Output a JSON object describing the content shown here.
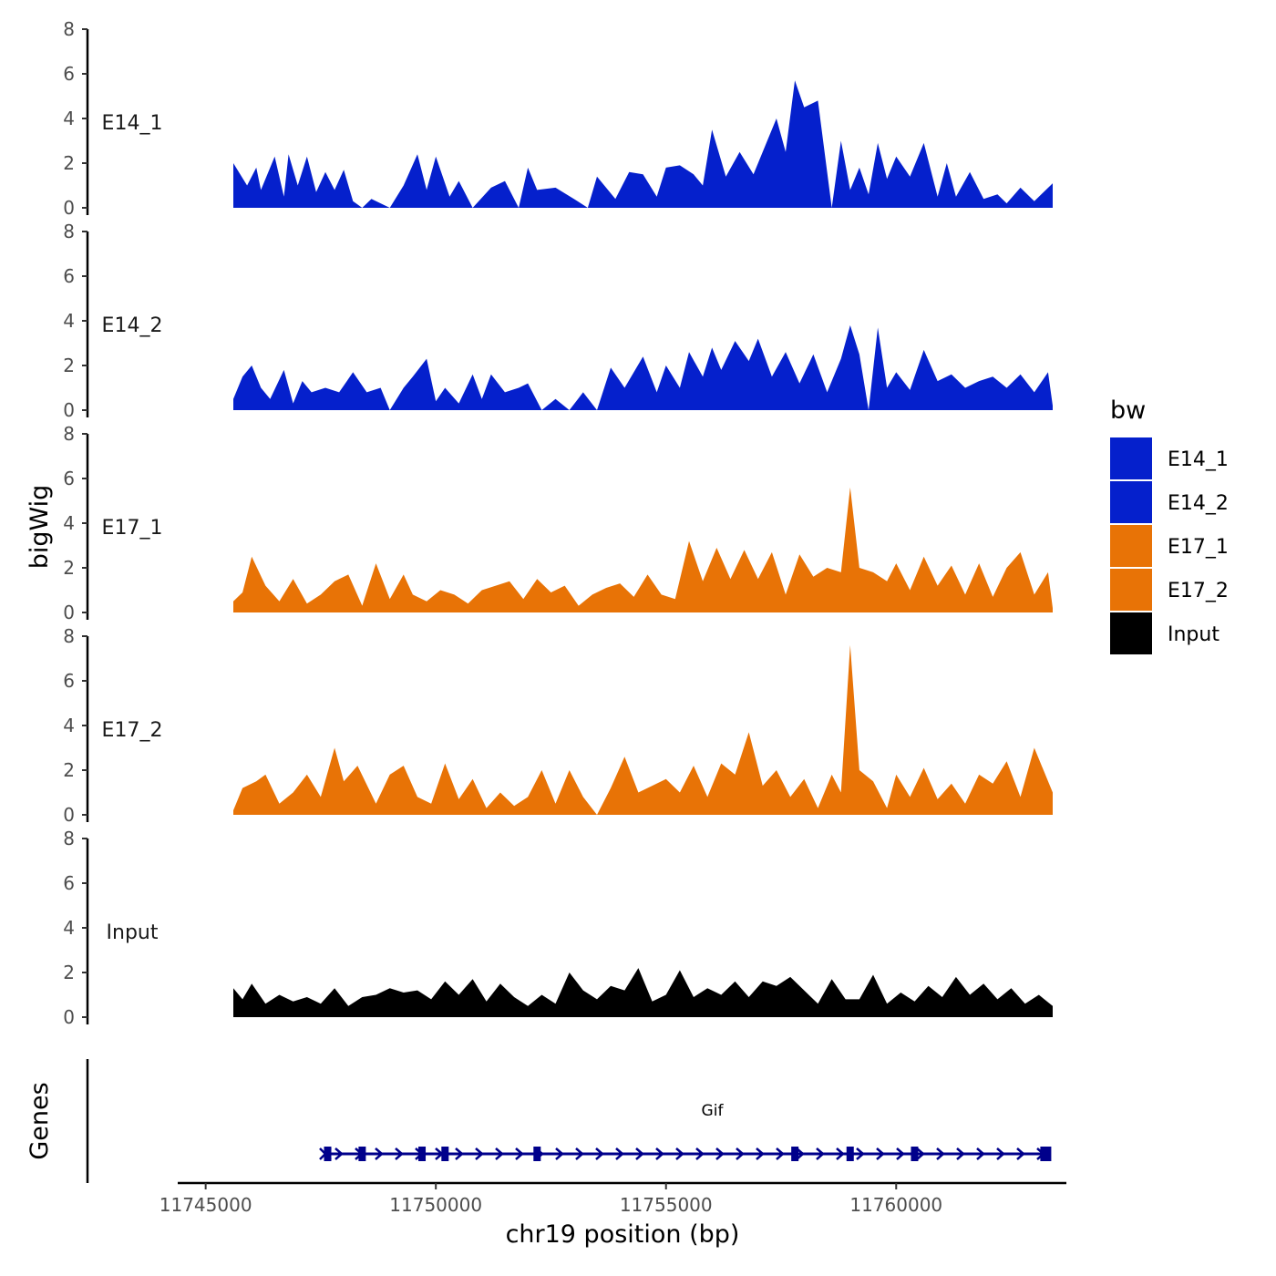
{
  "chart_data": {
    "type": "area",
    "ylabel": "bigWig",
    "xlabel": "chr19 position (bp)",
    "x_range": [
      11745600,
      11763400
    ],
    "xlim": [
      11744700,
      11764400
    ],
    "ylim": [
      0,
      8
    ],
    "y_ticks": [
      "0",
      "2",
      "4",
      "6",
      "8"
    ],
    "x_ticks": [
      {
        "value": 11745000,
        "label": "11745000"
      },
      {
        "value": 11750000,
        "label": "11750000"
      },
      {
        "value": 11755000,
        "label": "11755000"
      },
      {
        "value": 11760000,
        "label": "11760000"
      }
    ],
    "legend": {
      "title": "bw",
      "position": "right",
      "items": [
        {
          "label": "E14_1",
          "color": "#0520CC"
        },
        {
          "label": "E14_2",
          "color": "#0520CC"
        },
        {
          "label": "E17_1",
          "color": "#E87306"
        },
        {
          "label": "E17_2",
          "color": "#E87306"
        },
        {
          "label": "Input",
          "color": "#000000"
        }
      ]
    },
    "series": [
      {
        "name": "E14_1",
        "color": "#0520CC",
        "x": [
          11745600,
          11745900,
          11746100,
          11746200,
          11746500,
          11746700,
          11746800,
          11747000,
          11747200,
          11747400,
          11747600,
          11747800,
          11748000,
          11748200,
          11748400,
          11748600,
          11749000,
          11749300,
          11749600,
          11749800,
          11750000,
          11750300,
          11750500,
          11750800,
          11751200,
          11751500,
          11751800,
          11752000,
          11752200,
          11752600,
          11753000,
          11753300,
          11753500,
          11753900,
          11754200,
          11754500,
          11754800,
          11755000,
          11755300,
          11755600,
          11755800,
          11756000,
          11756300,
          11756600,
          11756900,
          11757200,
          11757400,
          11757600,
          11757800,
          11758000,
          11758300,
          11758600,
          11758800,
          11759000,
          11759200,
          11759400,
          11759600,
          11759800,
          11760000,
          11760300,
          11760600,
          11760900,
          11761100,
          11761300,
          11761600,
          11761900,
          11762200,
          11762400,
          11762700,
          11763000,
          11763400
        ],
        "values": [
          2.0,
          1.0,
          1.8,
          0.8,
          2.3,
          0.5,
          2.4,
          1.0,
          2.3,
          0.7,
          1.6,
          0.8,
          1.7,
          0.3,
          0.0,
          0.4,
          0.0,
          1.0,
          2.4,
          0.8,
          2.3,
          0.5,
          1.2,
          0.0,
          0.9,
          1.2,
          0.0,
          1.8,
          0.8,
          0.9,
          0.4,
          0.0,
          1.4,
          0.4,
          1.6,
          1.5,
          0.5,
          1.8,
          1.9,
          1.5,
          1.0,
          3.5,
          1.4,
          2.5,
          1.5,
          3.0,
          4.0,
          2.5,
          5.7,
          4.5,
          4.8,
          0.0,
          3.0,
          0.8,
          1.8,
          0.6,
          2.9,
          1.3,
          2.3,
          1.4,
          2.9,
          0.5,
          2.0,
          0.5,
          1.6,
          0.4,
          0.6,
          0.2,
          0.9,
          0.3,
          1.1
        ]
      },
      {
        "name": "E14_2",
        "color": "#0520CC",
        "x": [
          11745600,
          11745800,
          11746000,
          11746200,
          11746400,
          11746700,
          11746900,
          11747100,
          11747300,
          11747600,
          11747900,
          11748200,
          11748500,
          11748800,
          11749000,
          11749300,
          11749500,
          11749800,
          11750000,
          11750200,
          11750500,
          11750800,
          11751000,
          11751200,
          11751500,
          11751800,
          11752000,
          11752300,
          11752600,
          11752900,
          11753200,
          11753500,
          11753800,
          11754100,
          11754500,
          11754800,
          11755000,
          11755300,
          11755500,
          11755800,
          11756000,
          11756200,
          11756500,
          11756800,
          11757000,
          11757300,
          11757600,
          11757900,
          11758200,
          11758500,
          11758800,
          11759000,
          11759200,
          11759400,
          11759600,
          11759800,
          11760000,
          11760300,
          11760600,
          11760900,
          11761200,
          11761500,
          11761800,
          11762100,
          11762400,
          11762700,
          11763000,
          11763300,
          11763400
        ],
        "values": [
          0.5,
          1.5,
          2.0,
          1.0,
          0.5,
          1.8,
          0.3,
          1.3,
          0.8,
          1.0,
          0.8,
          1.7,
          0.8,
          1.0,
          0.0,
          1.0,
          1.5,
          2.3,
          0.4,
          1.0,
          0.3,
          1.6,
          0.5,
          1.6,
          0.8,
          1.0,
          1.2,
          0.0,
          0.5,
          0.0,
          0.8,
          0.0,
          1.9,
          1.0,
          2.4,
          0.8,
          2.0,
          1.0,
          2.6,
          1.5,
          2.8,
          1.8,
          3.1,
          2.2,
          3.2,
          1.5,
          2.6,
          1.2,
          2.5,
          0.8,
          2.3,
          3.8,
          2.5,
          0.0,
          3.7,
          1.0,
          1.7,
          0.9,
          2.7,
          1.3,
          1.6,
          1.0,
          1.3,
          1.5,
          1.0,
          1.6,
          0.8,
          1.7,
          0.2
        ]
      },
      {
        "name": "E17_1",
        "color": "#E87306",
        "x": [
          11745600,
          11745800,
          11746000,
          11746300,
          11746600,
          11746900,
          11747200,
          11747500,
          11747800,
          11748100,
          11748400,
          11748700,
          11749000,
          11749300,
          11749500,
          11749800,
          11750100,
          11750400,
          11750700,
          11751000,
          11751300,
          11751600,
          11751900,
          11752200,
          11752500,
          11752800,
          11753100,
          11753400,
          11753700,
          11754000,
          11754300,
          11754600,
          11754900,
          11755200,
          11755500,
          11755800,
          11756100,
          11756400,
          11756700,
          11757000,
          11757300,
          11757600,
          11757900,
          11758200,
          11758500,
          11758800,
          11759000,
          11759200,
          11759500,
          11759800,
          11760000,
          11760300,
          11760600,
          11760900,
          11761200,
          11761500,
          11761800,
          11762100,
          11762400,
          11762700,
          11763000,
          11763300,
          11763400
        ],
        "values": [
          0.5,
          0.9,
          2.5,
          1.2,
          0.5,
          1.5,
          0.4,
          0.8,
          1.4,
          1.7,
          0.3,
          2.2,
          0.6,
          1.7,
          0.8,
          0.5,
          1.0,
          0.8,
          0.4,
          1.0,
          1.2,
          1.4,
          0.6,
          1.5,
          0.9,
          1.2,
          0.3,
          0.8,
          1.1,
          1.3,
          0.7,
          1.7,
          0.8,
          0.6,
          3.2,
          1.4,
          2.9,
          1.5,
          2.8,
          1.5,
          2.7,
          0.8,
          2.6,
          1.6,
          2.0,
          1.8,
          5.6,
          2.0,
          1.8,
          1.4,
          2.2,
          1.0,
          2.5,
          1.2,
          2.1,
          0.8,
          2.2,
          0.7,
          2.0,
          2.7,
          0.8,
          1.8,
          0.2
        ]
      },
      {
        "name": "E17_2",
        "color": "#E87306",
        "x": [
          11745600,
          11745800,
          11746100,
          11746300,
          11746600,
          11746900,
          11747200,
          11747500,
          11747800,
          11748000,
          11748300,
          11748700,
          11749000,
          11749300,
          11749600,
          11749900,
          11750200,
          11750500,
          11750800,
          11751100,
          11751400,
          11751700,
          11752000,
          11752300,
          11752600,
          11752900,
          11753200,
          11753500,
          11753800,
          11754100,
          11754400,
          11754700,
          11755000,
          11755300,
          11755600,
          11755900,
          11756200,
          11756500,
          11756800,
          11757100,
          11757400,
          11757700,
          11758000,
          11758300,
          11758600,
          11758800,
          11759000,
          11759200,
          11759500,
          11759800,
          11760000,
          11760300,
          11760600,
          11760900,
          11761200,
          11761500,
          11761800,
          11762100,
          11762400,
          11762700,
          11763000,
          11763400
        ],
        "values": [
          0.2,
          1.2,
          1.5,
          1.8,
          0.5,
          1.0,
          1.8,
          0.8,
          3.0,
          1.5,
          2.2,
          0.5,
          1.8,
          2.2,
          0.8,
          0.5,
          2.3,
          0.7,
          1.6,
          0.3,
          1.0,
          0.4,
          0.8,
          2.0,
          0.5,
          2.0,
          0.8,
          0.0,
          1.2,
          2.6,
          1.0,
          1.3,
          1.6,
          1.0,
          2.2,
          0.8,
          2.3,
          1.8,
          3.7,
          1.3,
          2.0,
          0.8,
          1.6,
          0.3,
          1.8,
          1.0,
          7.6,
          2.0,
          1.5,
          0.3,
          1.8,
          0.8,
          2.1,
          0.7,
          1.4,
          0.5,
          1.8,
          1.4,
          2.4,
          0.8,
          3.0,
          1.0
        ]
      },
      {
        "name": "Input",
        "color": "#000000",
        "x": [
          11745600,
          11745800,
          11746000,
          11746300,
          11746600,
          11746900,
          11747200,
          11747500,
          11747800,
          11748100,
          11748400,
          11748700,
          11749000,
          11749300,
          11749600,
          11749900,
          11750200,
          11750500,
          11750800,
          11751100,
          11751400,
          11751700,
          11752000,
          11752300,
          11752600,
          11752900,
          11753200,
          11753500,
          11753800,
          11754100,
          11754400,
          11754700,
          11755000,
          11755300,
          11755600,
          11755900,
          11756200,
          11756500,
          11756800,
          11757100,
          11757400,
          11757700,
          11758000,
          11758300,
          11758600,
          11758900,
          11759200,
          11759500,
          11759800,
          11760100,
          11760400,
          11760700,
          11761000,
          11761300,
          11761600,
          11761900,
          11762200,
          11762500,
          11762800,
          11763100,
          11763400
        ],
        "values": [
          1.3,
          0.8,
          1.5,
          0.6,
          1.0,
          0.7,
          0.9,
          0.6,
          1.3,
          0.5,
          0.9,
          1.0,
          1.3,
          1.1,
          1.2,
          0.8,
          1.6,
          1.0,
          1.7,
          0.7,
          1.5,
          0.9,
          0.5,
          1.0,
          0.6,
          2.0,
          1.2,
          0.8,
          1.4,
          1.2,
          2.2,
          0.7,
          1.0,
          2.1,
          0.9,
          1.3,
          1.0,
          1.6,
          0.9,
          1.6,
          1.4,
          1.8,
          1.2,
          0.6,
          1.7,
          0.8,
          0.8,
          1.9,
          0.6,
          1.1,
          0.7,
          1.4,
          0.9,
          1.8,
          1.0,
          1.5,
          0.8,
          1.3,
          0.6,
          1.0,
          0.5
        ]
      }
    ],
    "genes_track": {
      "label": "Genes",
      "gene_name": "Gif",
      "color": "#00008B",
      "start": 11747600,
      "end": 11763300,
      "strand": "+",
      "exons": [
        11747650,
        11748400,
        11749700,
        11750200,
        11752200,
        11757800,
        11759000,
        11760400,
        11763250
      ]
    }
  }
}
